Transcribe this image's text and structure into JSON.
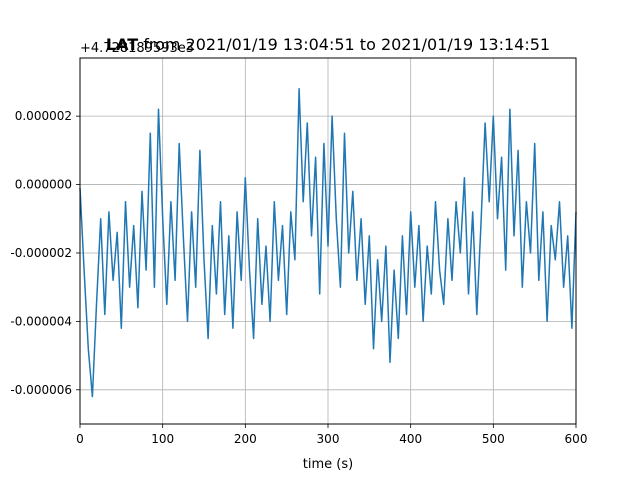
{
  "chart_data": {
    "type": "line",
    "title": "LAT from 2021/01/19 13:04:51 to 2021/01/19 13:14:51",
    "title_bold_prefix": "LAT",
    "title_rest": " from 2021/01/19 13:04:51 to 2021/01/19 13:14:51",
    "offset_label": "+4.728189593e3",
    "xlabel": "time (s)",
    "ylabel": "",
    "xlim": [
      0,
      600
    ],
    "ylim": [
      -7e-06,
      3.7e-06
    ],
    "xticks": [
      0,
      100,
      200,
      300,
      400,
      500,
      600
    ],
    "xtick_labels": [
      "0",
      "100",
      "200",
      "300",
      "400",
      "500",
      "600"
    ],
    "yticks": [
      -6e-06,
      -4e-06,
      -2e-06,
      0.0,
      2e-06
    ],
    "ytick_labels": [
      "-0.000006",
      "-0.000004",
      "-0.000002",
      "0.000000",
      "0.000002"
    ],
    "grid": true,
    "line_color": "#1f77b4",
    "series": [
      {
        "x": [
          0,
          5,
          10,
          15,
          20,
          25,
          30,
          35,
          40,
          45,
          50,
          55,
          60,
          65,
          70,
          75,
          80,
          85,
          90,
          95,
          100,
          105,
          110,
          115,
          120,
          125,
          130,
          135,
          140,
          145,
          150,
          155,
          160,
          165,
          170,
          175,
          180,
          185,
          190,
          195,
          200,
          205,
          210,
          215,
          220,
          225,
          230,
          235,
          240,
          245,
          250,
          255,
          260,
          265,
          270,
          275,
          280,
          285,
          290,
          295,
          300,
          305,
          310,
          315,
          320,
          325,
          330,
          335,
          340,
          345,
          350,
          355,
          360,
          365,
          370,
          375,
          380,
          385,
          390,
          395,
          400,
          405,
          410,
          415,
          420,
          425,
          430,
          435,
          440,
          445,
          450,
          455,
          460,
          465,
          470,
          475,
          480,
          485,
          490,
          495,
          500,
          505,
          510,
          515,
          520,
          525,
          530,
          535,
          540,
          545,
          550,
          555,
          560,
          565,
          570,
          575,
          580,
          585,
          590,
          595,
          600
        ],
        "y": [
          -1e-07,
          -2.5e-06,
          -4.8e-06,
          -6.2e-06,
          -3.5e-06,
          -1e-06,
          -3.8e-06,
          -8e-07,
          -2.8e-06,
          -1.4e-06,
          -4.2e-06,
          -5e-07,
          -3e-06,
          -1.2e-06,
          -3.6e-06,
          -2e-07,
          -2.5e-06,
          1.5e-06,
          -3e-06,
          2.2e-06,
          -1e-06,
          -3.5e-06,
          -5e-07,
          -2.8e-06,
          1.2e-06,
          -1.5e-06,
          -4e-06,
          -8e-07,
          -3e-06,
          1e-06,
          -2.2e-06,
          -4.5e-06,
          -1.2e-06,
          -3.2e-06,
          -5e-07,
          -3.8e-06,
          -1.5e-06,
          -4.2e-06,
          -8e-07,
          -2.8e-06,
          2e-07,
          -2.5e-06,
          -4.5e-06,
          -1e-06,
          -3.5e-06,
          -1.8e-06,
          -4e-06,
          -5e-07,
          -2.8e-06,
          -1.2e-06,
          -3.8e-06,
          -8e-07,
          -2.2e-06,
          2.8e-06,
          -5e-07,
          1.8e-06,
          -1.5e-06,
          8e-07,
          -3.2e-06,
          1.2e-06,
          -1.8e-06,
          2e-06,
          -1e-06,
          -3e-06,
          1.5e-06,
          -2e-06,
          -2e-07,
          -2.8e-06,
          -1e-06,
          -3.5e-06,
          -1.5e-06,
          -4.8e-06,
          -2.2e-06,
          -4e-06,
          -1.8e-06,
          -5.2e-06,
          -2.5e-06,
          -4.5e-06,
          -1.5e-06,
          -3.8e-06,
          -8e-07,
          -3e-06,
          -1.2e-06,
          -4e-06,
          -1.8e-06,
          -3.2e-06,
          -5e-07,
          -2.5e-06,
          -3.5e-06,
          -1e-06,
          -2.8e-06,
          -5e-07,
          -2e-06,
          2e-07,
          -3.2e-06,
          -8e-07,
          -3.8e-06,
          -1.2e-06,
          1.8e-06,
          -5e-07,
          2e-06,
          -1e-06,
          8e-07,
          -2.5e-06,
          2.2e-06,
          -1.5e-06,
          1e-06,
          -3e-06,
          -5e-07,
          -2e-06,
          1.2e-06,
          -2.8e-06,
          -8e-07,
          -4e-06,
          -1.2e-06,
          -2.2e-06,
          -5e-07,
          -3e-06,
          -1.5e-06,
          -4.2e-06,
          -8e-07
        ]
      }
    ]
  }
}
